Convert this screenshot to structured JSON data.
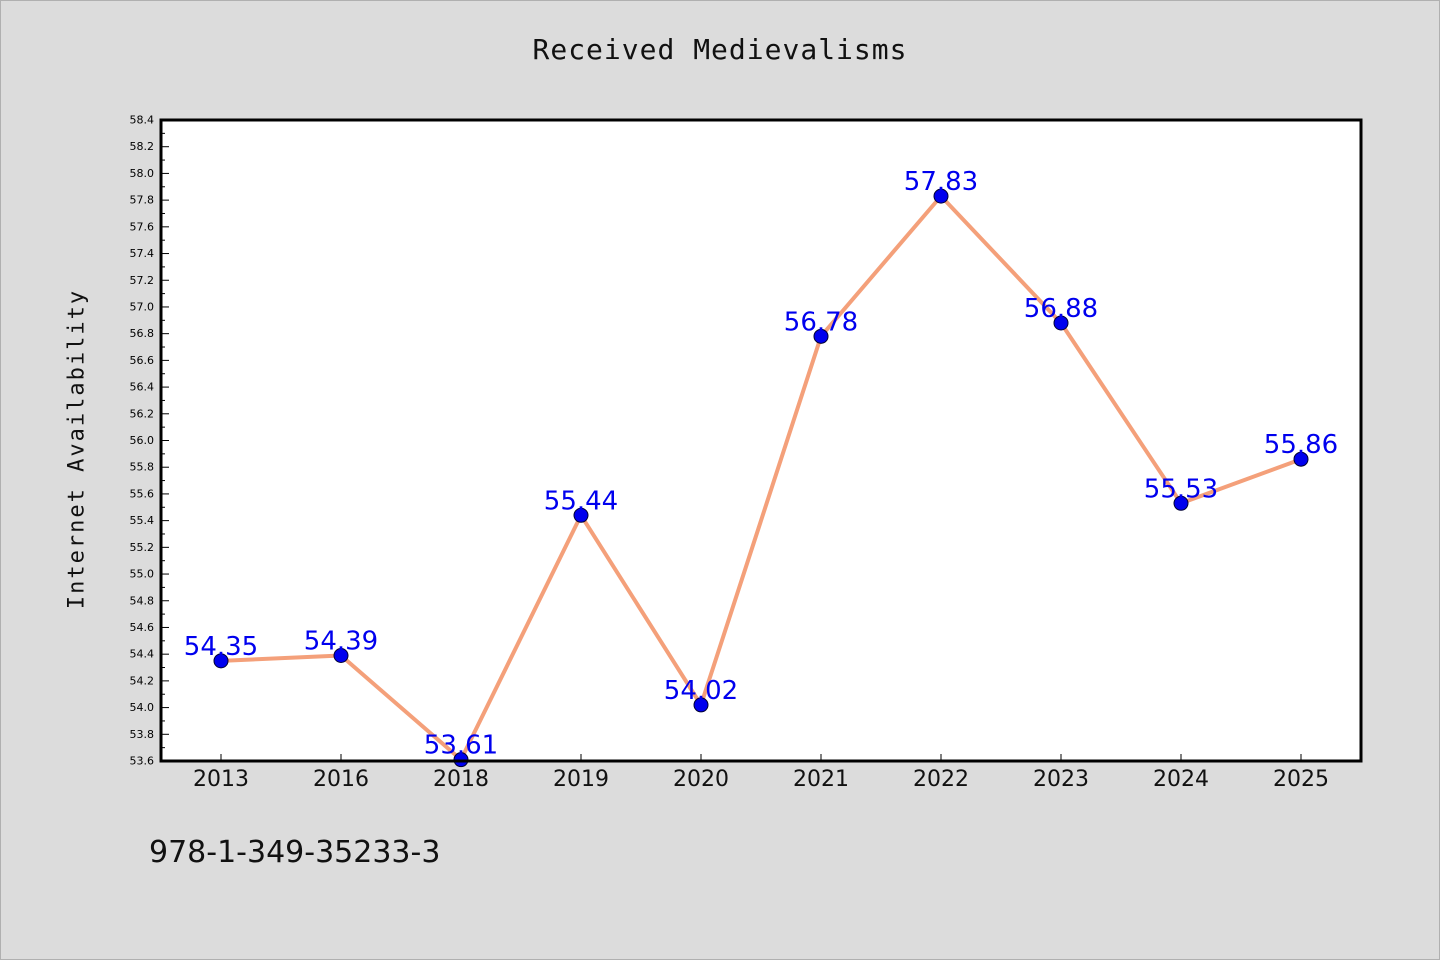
{
  "chart_data": {
    "type": "line",
    "title": "Received Medievalisms",
    "xlabel": "",
    "ylabel": "Internet Availability",
    "categories": [
      "2013",
      "2016",
      "2018",
      "2019",
      "2020",
      "2021",
      "2022",
      "2023",
      "2024",
      "2025"
    ],
    "values": [
      54.35,
      54.39,
      53.61,
      55.44,
      54.02,
      56.78,
      57.83,
      56.88,
      55.53,
      55.86
    ],
    "data_labels": [
      "54.35",
      "54.39",
      "53.61",
      "55.44",
      "54.02",
      "56.78",
      "57.83",
      "56.88",
      "55.53",
      "55.86"
    ],
    "ylim": [
      53.6,
      58.4
    ],
    "yticks": [
      "53.6",
      "53.8",
      "54.0",
      "54.2",
      "54.4",
      "54.6",
      "54.8",
      "55.0",
      "55.2",
      "55.4",
      "55.6",
      "55.8",
      "56.0",
      "56.2",
      "56.4",
      "56.6",
      "56.8",
      "57.0",
      "57.2",
      "57.4",
      "57.6",
      "57.8",
      "58.0",
      "58.2",
      "58.4"
    ],
    "grid": false,
    "line_color": "#f4a07a",
    "marker_color": "#0000ee",
    "label_color": "#0000ee"
  },
  "footer_text": "978-1-349-35233-3"
}
